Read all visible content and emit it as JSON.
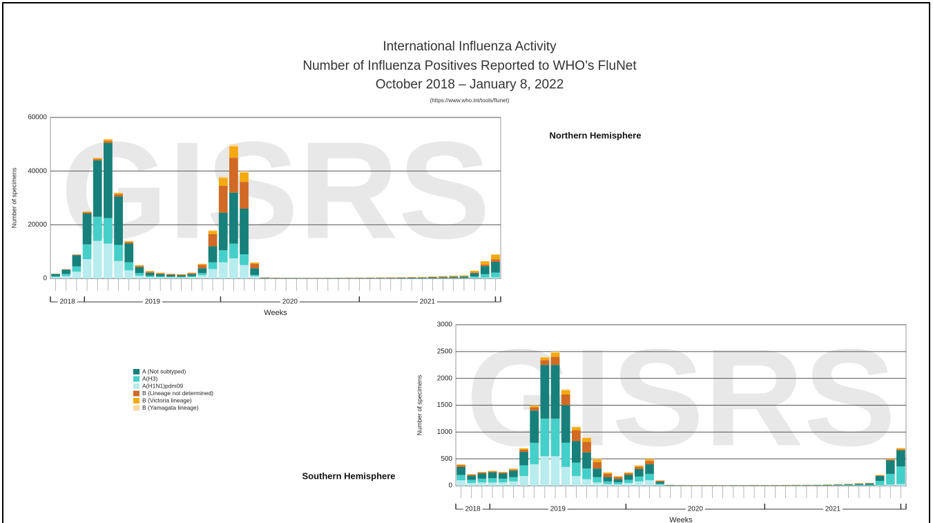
{
  "title": [
    "International Influenza Activity",
    "Number of Influenza Positives Reported to WHO’s FluNet",
    "October 2018 – January 8, 2022"
  ],
  "source": "(https://www.who.int/tools/flunet)",
  "chart_data": [
    {
      "type": "stacked_bar",
      "title": "Northern Hemisphere",
      "watermark": "GISRS",
      "x_label": "Weeks",
      "y_label": "Number of specimens",
      "years": [
        "2018",
        "2019",
        "2020",
        "2021"
      ],
      "categories": [
        null,
        null,
        null,
        null,
        null,
        null,
        null,
        null,
        null,
        null,
        null,
        null,
        null,
        null,
        null,
        null,
        null,
        null,
        null,
        null,
        null,
        null,
        null,
        null,
        null,
        null,
        null,
        null,
        null,
        null,
        null,
        null,
        null,
        null,
        null,
        null,
        null,
        null,
        null,
        null,
        null,
        null,
        null
      ],
      "ylim": [
        0,
        60000
      ],
      "yticks": [
        0,
        20000,
        40000,
        60000
      ],
      "grid": true,
      "series": [
        {
          "name": "A (Not subtyped)",
          "color": "#17807a",
          "values": [
            800,
            1600,
            4200,
            11500,
            21000,
            28000,
            18000,
            7000,
            2200,
            1100,
            800,
            600,
            500,
            700,
            1800,
            6000,
            14000,
            19000,
            17000,
            2500,
            150,
            120,
            100,
            90,
            80,
            80,
            90,
            100,
            110,
            120,
            130,
            140,
            150,
            160,
            170,
            200,
            250,
            300,
            350,
            400,
            1200,
            3000,
            4000
          ]
        },
        {
          "name": "A(H3)",
          "color": "#45cfc9",
          "values": [
            400,
            800,
            2000,
            5500,
            9000,
            9500,
            6000,
            3000,
            1000,
            500,
            400,
            350,
            300,
            400,
            800,
            2500,
            4500,
            5500,
            4000,
            500,
            40,
            30,
            25,
            20,
            20,
            20,
            20,
            25,
            30,
            30,
            35,
            40,
            40,
            50,
            60,
            80,
            100,
            130,
            160,
            200,
            600,
            1300,
            1800
          ]
        },
        {
          "name": "A(H1N1)pdm09",
          "color": "#b8ecee",
          "values": [
            450,
            900,
            2500,
            7200,
            14000,
            13000,
            6500,
            3000,
            1000,
            500,
            400,
            350,
            350,
            500,
            1200,
            3500,
            6000,
            7500,
            5000,
            800,
            60,
            40,
            30,
            25,
            20,
            20,
            20,
            20,
            25,
            25,
            25,
            25,
            30,
            30,
            30,
            35,
            40,
            45,
            50,
            60,
            150,
            300,
            400
          ]
        },
        {
          "name": "B (Lineage not determined)",
          "color": "#d06a25",
          "values": [
            80,
            100,
            150,
            400,
            500,
            700,
            800,
            500,
            400,
            350,
            300,
            250,
            250,
            350,
            1200,
            4500,
            10000,
            13000,
            10000,
            1600,
            100,
            60,
            50,
            40,
            40,
            40,
            40,
            50,
            60,
            70,
            80,
            90,
            100,
            100,
            110,
            120,
            140,
            160,
            200,
            150,
            300,
            600,
            900
          ]
        },
        {
          "name": "B (Victoria lineage)",
          "color": "#f4a90f",
          "values": [
            50,
            70,
            100,
            300,
            400,
            600,
            500,
            350,
            300,
            250,
            200,
            180,
            150,
            200,
            400,
            1200,
            3000,
            4200,
            3400,
            500,
            40,
            40,
            30,
            30,
            30,
            30,
            30,
            40,
            50,
            60,
            70,
            80,
            90,
            100,
            120,
            140,
            170,
            200,
            250,
            300,
            600,
            1200,
            1800
          ]
        },
        {
          "name": "B (Yamagata lineage)",
          "color": "#fbd8a0",
          "values": [
            20,
            30,
            50,
            100,
            100,
            200,
            200,
            150,
            100,
            100,
            100,
            70,
            50,
            50,
            100,
            300,
            500,
            800,
            600,
            100,
            10,
            5,
            5,
            5,
            0,
            0,
            0,
            0,
            0,
            0,
            0,
            0,
            0,
            0,
            0,
            0,
            0,
            0,
            0,
            0,
            10,
            10,
            10
          ]
        }
      ]
    },
    {
      "type": "stacked_bar",
      "title": "Southern Hemisphere",
      "watermark": "GISRS",
      "x_label": "Weeks",
      "y_label": "Number of specimens",
      "years": [
        "2018",
        "2019",
        "2020",
        "2021"
      ],
      "categories": [
        null,
        null,
        null,
        null,
        null,
        null,
        null,
        null,
        null,
        null,
        null,
        null,
        null,
        null,
        null,
        null,
        null,
        null,
        null,
        null,
        null,
        null,
        null,
        null,
        null,
        null,
        null,
        null,
        null,
        null,
        null,
        null,
        null,
        null,
        null,
        null,
        null,
        null,
        null,
        null,
        null,
        null,
        null
      ],
      "ylim": [
        0,
        3000
      ],
      "yticks": [
        0,
        500,
        1000,
        1500,
        2000,
        2500,
        3000
      ],
      "grid": true,
      "series": [
        {
          "color": "#17807a",
          "values": [
            150,
            80,
            100,
            110,
            100,
            120,
            250,
            600,
            1000,
            1000,
            700,
            400,
            300,
            160,
            80,
            60,
            90,
            140,
            180,
            40,
            6,
            4,
            3,
            3,
            3,
            3,
            4,
            4,
            5,
            4,
            4,
            5,
            5,
            6,
            6,
            8,
            10,
            12,
            15,
            25,
            90,
            250,
            300
          ]
        },
        {
          "color": "#45cfc9",
          "values": [
            100,
            60,
            70,
            80,
            70,
            80,
            200,
            400,
            700,
            700,
            450,
            250,
            200,
            100,
            50,
            40,
            60,
            90,
            120,
            20,
            3,
            2,
            2,
            2,
            2,
            2,
            2,
            3,
            3,
            3,
            3,
            3,
            4,
            4,
            5,
            6,
            8,
            10,
            15,
            15,
            80,
            200,
            330
          ]
        },
        {
          "color": "#b8ecee",
          "values": [
            100,
            50,
            60,
            60,
            60,
            80,
            180,
            400,
            550,
            550,
            350,
            180,
            120,
            60,
            30,
            25,
            50,
            80,
            100,
            15,
            2,
            1,
            1,
            1,
            1,
            1,
            1,
            1,
            1,
            1,
            1,
            1,
            1,
            1,
            1,
            1,
            1,
            2,
            2,
            3,
            10,
            20,
            30
          ]
        },
        {
          "color": "#d06a25",
          "values": [
            30,
            15,
            15,
            15,
            15,
            20,
            40,
            60,
            90,
            150,
            200,
            200,
            200,
            120,
            60,
            35,
            30,
            40,
            60,
            15,
            2,
            2,
            2,
            2,
            2,
            2,
            2,
            2,
            3,
            3,
            3,
            3,
            3,
            3,
            3,
            4,
            4,
            5,
            6,
            5,
            10,
            15,
            20
          ]
        },
        {
          "color": "#f4a90f",
          "values": [
            15,
            10,
            10,
            10,
            10,
            15,
            25,
            30,
            50,
            80,
            80,
            60,
            70,
            50,
            25,
            15,
            15,
            25,
            35,
            8,
            2,
            2,
            2,
            2,
            2,
            2,
            2,
            2,
            2,
            2,
            2,
            3,
            3,
            3,
            3,
            4,
            5,
            6,
            8,
            5,
            10,
            15,
            20
          ]
        },
        {
          "color": "#fbd8a0",
          "values": [
            5,
            5,
            5,
            5,
            5,
            5,
            5,
            10,
            10,
            20,
            20,
            10,
            10,
            10,
            5,
            5,
            5,
            5,
            5,
            2,
            0,
            0,
            0,
            0,
            0,
            0,
            0,
            0,
            0,
            0,
            0,
            0,
            0,
            0,
            0,
            0,
            0,
            0,
            0,
            0,
            0,
            0,
            0
          ]
        }
      ]
    }
  ]
}
